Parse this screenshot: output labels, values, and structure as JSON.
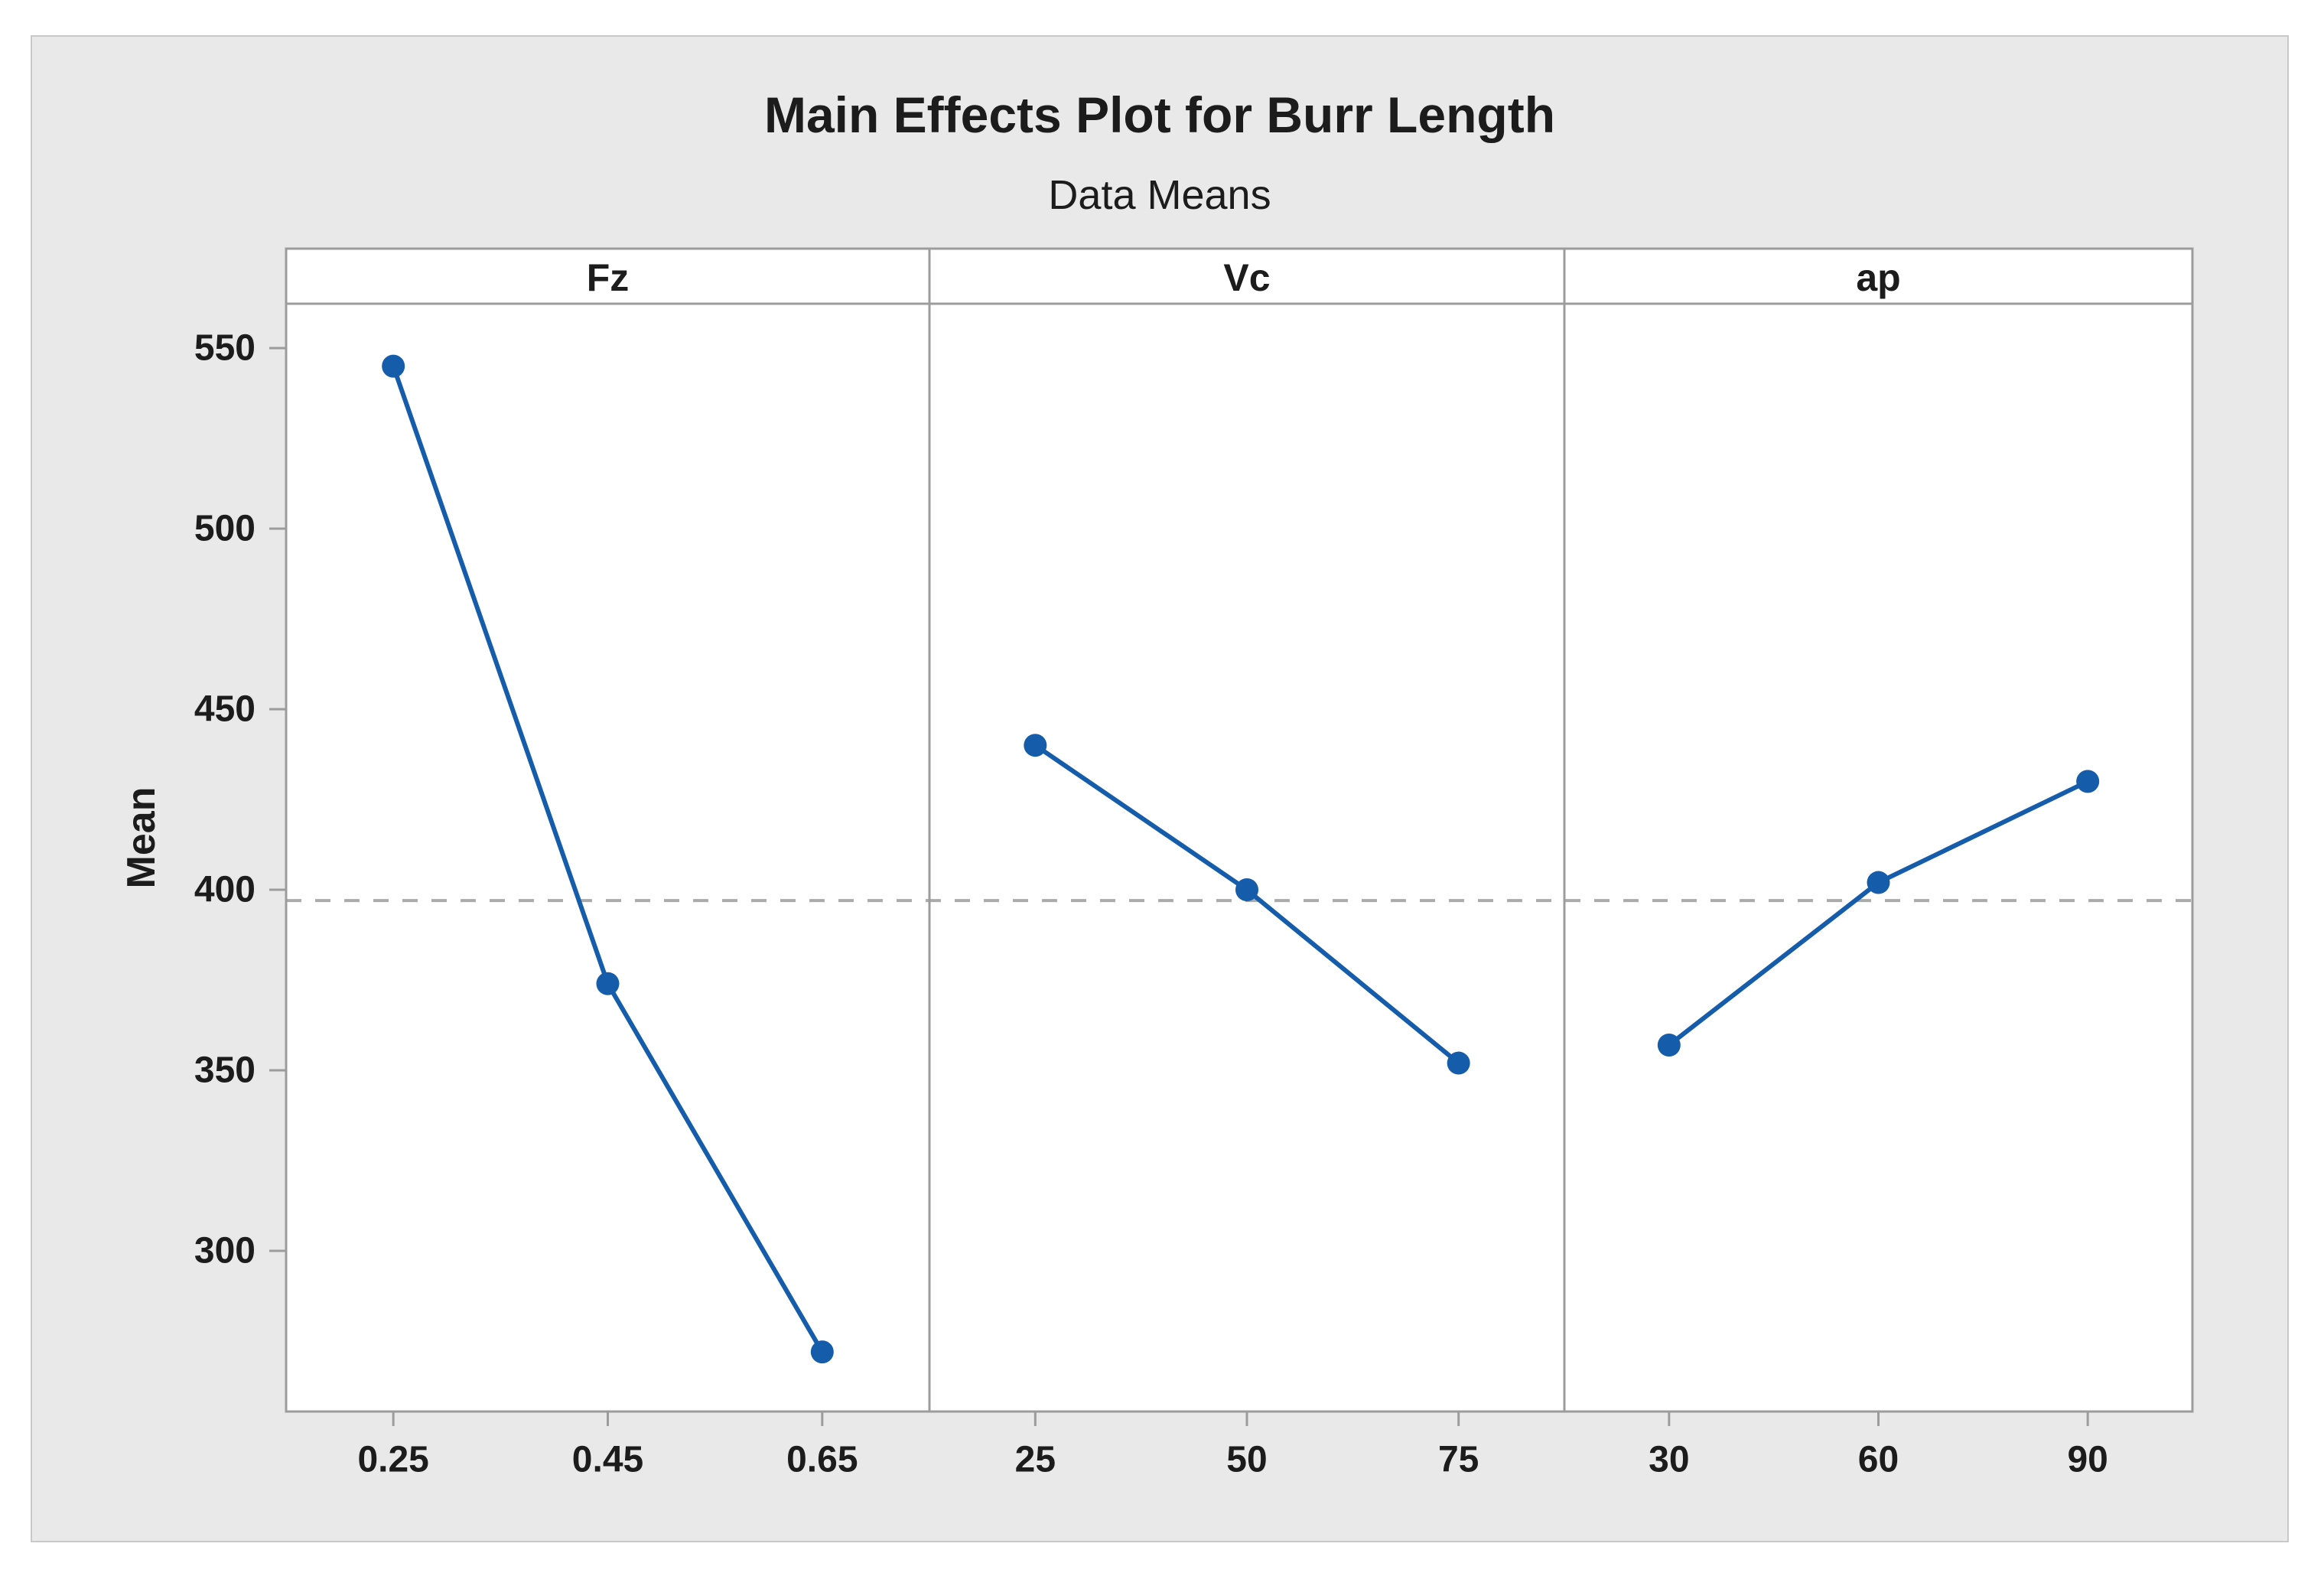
{
  "header": {
    "title": "Main Effects Plot for Burr Length",
    "subtitle": "Data Means"
  },
  "y_axis": {
    "label": "Mean"
  },
  "chart_data": {
    "type": "line",
    "title": "Main Effects Plot for Burr Length",
    "subtitle": "Data Means",
    "ylabel": "Mean",
    "xlabel": "",
    "panels": [
      {
        "factor": "Fz",
        "categories": [
          "0.25",
          "0.45",
          "0.65"
        ],
        "means": [
          545,
          374,
          272
        ]
      },
      {
        "factor": "Vc",
        "categories": [
          "25",
          "50",
          "75"
        ],
        "means": [
          440,
          400,
          352
        ]
      },
      {
        "factor": "ap",
        "categories": [
          "30",
          "60",
          "90"
        ],
        "means": [
          357,
          402,
          430
        ]
      }
    ],
    "yticks": [
      550,
      500,
      450,
      400,
      350,
      300
    ],
    "ylim": [
      255,
      562
    ],
    "overall_mean": 397,
    "grid": false,
    "legend": "none",
    "style": {
      "series_color": "#155CAB",
      "marker": "circle",
      "reference_line": "dashed",
      "reference_line_color": "#ABABAB",
      "frame_color": "#9C9C9C",
      "panel_background": "#FFFFFF",
      "canvas_background": "#E9E9E9",
      "text_color": "#1C1C1C"
    }
  }
}
